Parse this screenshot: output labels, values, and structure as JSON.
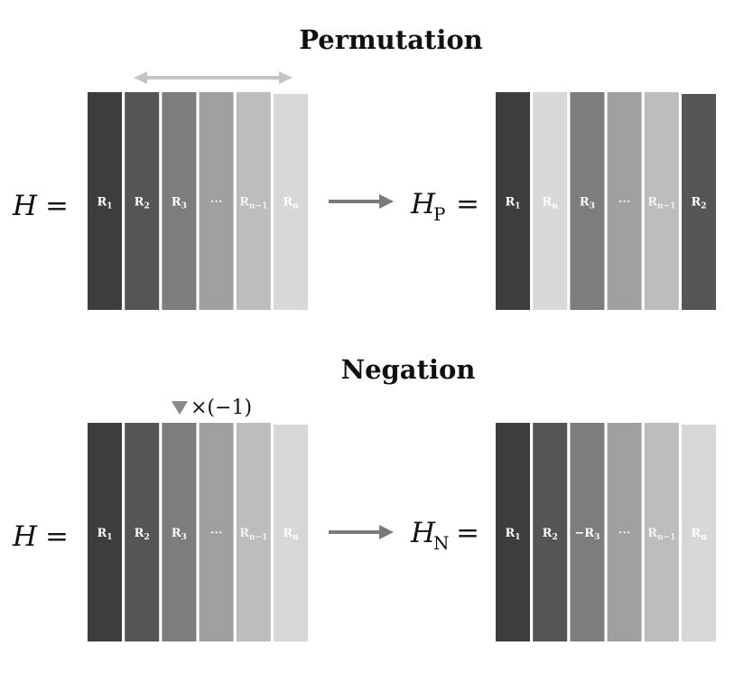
{
  "permutation": {
    "title": "Permutation",
    "left": {
      "lhs": "H",
      "op": "=",
      "columns": [
        {
          "base": "R",
          "sub": "1",
          "fill": "#3d3d3d",
          "text": "#ffffff"
        },
        {
          "base": "R",
          "sub": "2",
          "fill": "#555555",
          "text": "#ffffff"
        },
        {
          "base": "R",
          "sub": "3",
          "fill": "#7d7d7d",
          "text": "#ffffff"
        },
        {
          "base": "···",
          "sub": "",
          "fill": "#a0a0a0",
          "text": "#eeeeee"
        },
        {
          "base": "R",
          "sub": "n−1",
          "fill": "#bdbdbd",
          "text": "#f4f4f4"
        },
        {
          "base": "R",
          "sub": "n",
          "fill": "#d8d8d8",
          "text": "#ffffff"
        }
      ]
    },
    "right": {
      "lhs": "H",
      "sub": "P",
      "op": "=",
      "columns": [
        {
          "base": "R",
          "sub": "1",
          "fill": "#3d3d3d",
          "text": "#ffffff"
        },
        {
          "base": "R",
          "sub": "n",
          "fill": "#d8d8d8",
          "text": "#ffffff"
        },
        {
          "base": "R",
          "sub": "3",
          "fill": "#7d7d7d",
          "text": "#ffffff"
        },
        {
          "base": "···",
          "sub": "",
          "fill": "#a0a0a0",
          "text": "#eeeeee"
        },
        {
          "base": "R",
          "sub": "n−1",
          "fill": "#bdbdbd",
          "text": "#f4f4f4"
        },
        {
          "base": "R",
          "sub": "2",
          "fill": "#555555",
          "text": "#ffffff"
        }
      ]
    },
    "swap_arrow_color": "#c4c4c4"
  },
  "negation": {
    "title": "Negation",
    "marker_text": "×(−1)",
    "marker_color": "#8a8a8a",
    "left": {
      "lhs": "H",
      "op": "=",
      "columns": [
        {
          "base": "R",
          "sub": "1",
          "fill": "#3d3d3d",
          "text": "#ffffff"
        },
        {
          "base": "R",
          "sub": "2",
          "fill": "#555555",
          "text": "#ffffff"
        },
        {
          "base": "R",
          "sub": "3",
          "fill": "#7d7d7d",
          "text": "#ffffff"
        },
        {
          "base": "···",
          "sub": "",
          "fill": "#a0a0a0",
          "text": "#eeeeee"
        },
        {
          "base": "R",
          "sub": "n−1",
          "fill": "#bdbdbd",
          "text": "#f4f4f4"
        },
        {
          "base": "R",
          "sub": "n",
          "fill": "#d8d8d8",
          "text": "#ffffff"
        }
      ]
    },
    "right": {
      "lhs": "H",
      "sub": "N",
      "op": "=",
      "columns": [
        {
          "base": "R",
          "sub": "1",
          "fill": "#3d3d3d",
          "text": "#ffffff"
        },
        {
          "base": "R",
          "sub": "2",
          "fill": "#555555",
          "text": "#ffffff"
        },
        {
          "base": "−R",
          "sub": "3",
          "fill": "#7d7d7d",
          "text": "#ffffff"
        },
        {
          "base": "···",
          "sub": "",
          "fill": "#a0a0a0",
          "text": "#eeeeee"
        },
        {
          "base": "R",
          "sub": "n−1",
          "fill": "#bdbdbd",
          "text": "#f4f4f4"
        },
        {
          "base": "R",
          "sub": "n",
          "fill": "#d8d8d8",
          "text": "#ffffff"
        }
      ]
    }
  },
  "flow_arrow_color": "#7a7a7a"
}
